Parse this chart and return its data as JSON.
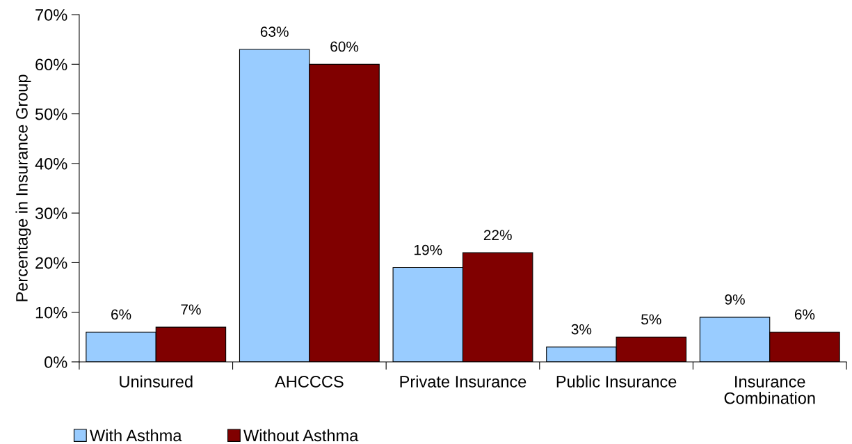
{
  "chart_data": {
    "type": "bar",
    "ylabel": "Percentage in Insurance Group",
    "categories": [
      "Uninsured",
      "AHCCCS",
      "Private Insurance",
      "Public Insurance",
      "Insurance Combination"
    ],
    "series": [
      {
        "name": "With Asthma",
        "color": "#99ccff",
        "values": [
          6,
          63,
          19,
          3,
          9
        ],
        "value_labels": [
          "6%",
          "63%",
          "19%",
          "3%",
          "9%"
        ]
      },
      {
        "name": "Without Asthma",
        "color": "#800000",
        "values": [
          7,
          60,
          22,
          5,
          6
        ],
        "value_labels": [
          "7%",
          "60%",
          "22%",
          "5%",
          "6%"
        ]
      }
    ],
    "ylim": [
      0,
      70
    ],
    "yticks": [
      {
        "value": 0,
        "label": "0%"
      },
      {
        "value": 10,
        "label": "10%"
      },
      {
        "value": 20,
        "label": "20%"
      },
      {
        "value": 30,
        "label": "30%"
      },
      {
        "value": 40,
        "label": "40%"
      },
      {
        "value": 50,
        "label": "50%"
      },
      {
        "value": 60,
        "label": "60%"
      },
      {
        "value": 70,
        "label": "70%"
      }
    ],
    "grid": false,
    "legend": "bottom left"
  }
}
